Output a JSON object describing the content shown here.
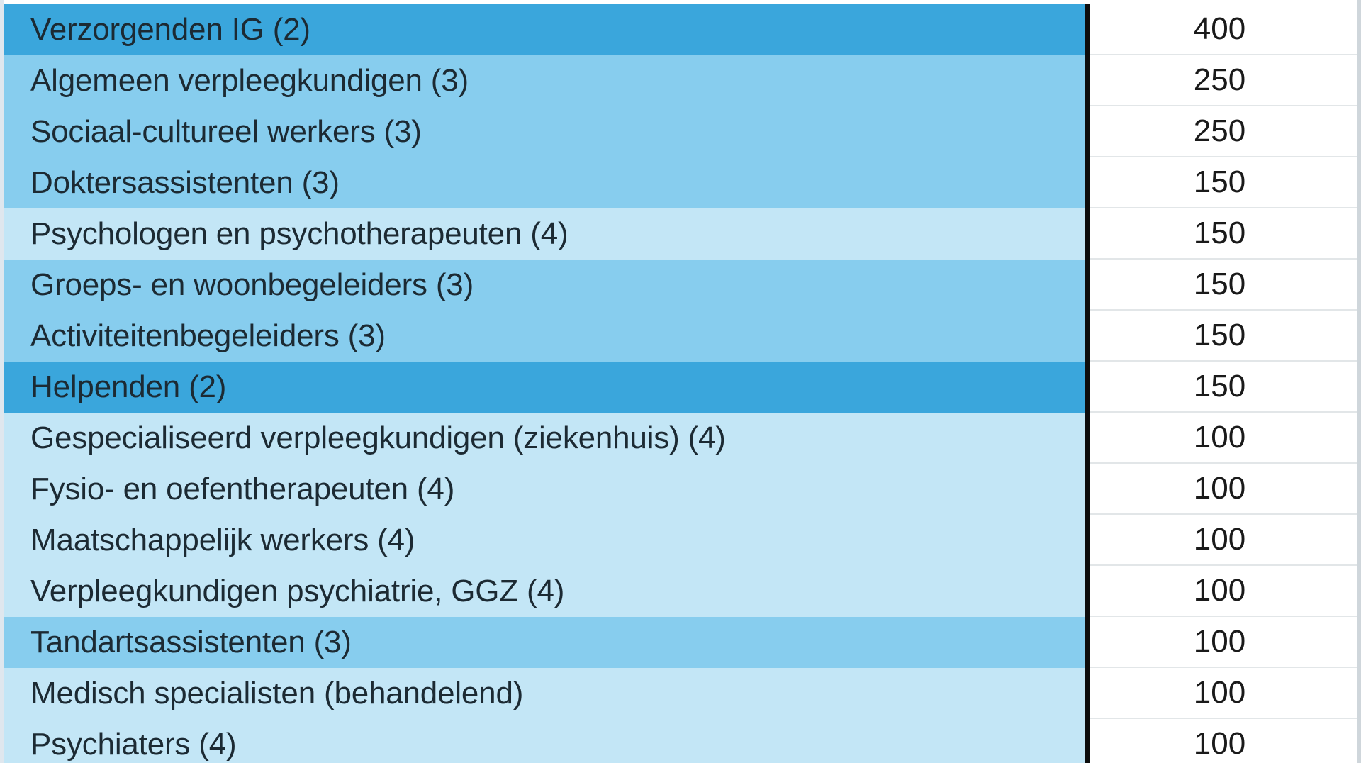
{
  "colors": {
    "dark": "#3aa6dc",
    "medium": "#87cdee",
    "light": "#c3e6f6"
  },
  "rows": [
    {
      "label": "Verzorgenden IG (2)",
      "value": "400",
      "shade": "dark"
    },
    {
      "label": "Algemeen verpleegkundigen (3)",
      "value": "250",
      "shade": "medium"
    },
    {
      "label": "Sociaal-cultureel werkers (3)",
      "value": "250",
      "shade": "medium"
    },
    {
      "label": "Doktersassistenten (3)",
      "value": "150",
      "shade": "medium"
    },
    {
      "label": "Psychologen en psychotherapeuten (4)",
      "value": "150",
      "shade": "light"
    },
    {
      "label": "Groeps- en woonbegeleiders (3)",
      "value": "150",
      "shade": "medium"
    },
    {
      "label": "Activiteitenbegeleiders (3)",
      "value": "150",
      "shade": "medium"
    },
    {
      "label": "Helpenden (2)",
      "value": "150",
      "shade": "dark"
    },
    {
      "label": "Gespecialiseerd verpleegkundigen (ziekenhuis) (4)",
      "value": "100",
      "shade": "light"
    },
    {
      "label": "Fysio- en oefentherapeuten (4)",
      "value": "100",
      "shade": "light"
    },
    {
      "label": "Maatschappelijk werkers (4)",
      "value": "100",
      "shade": "light"
    },
    {
      "label": "Verpleegkundigen psychiatrie, GGZ (4)",
      "value": "100",
      "shade": "light"
    },
    {
      "label": "Tandartsassistenten (3)",
      "value": "100",
      "shade": "medium"
    },
    {
      "label": "Medisch specialisten (behandelend)",
      "value": "100",
      "shade": "light"
    },
    {
      "label": "Psychiaters (4)",
      "value": "100",
      "shade": "light"
    }
  ]
}
